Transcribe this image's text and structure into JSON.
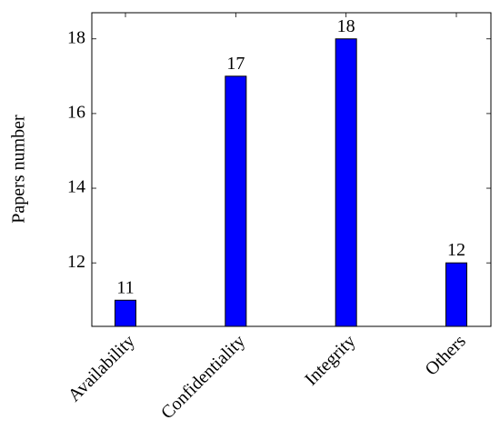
{
  "chart_data": {
    "type": "bar",
    "categories": [
      "Availability",
      "Confidentiality",
      "Integrity",
      "Others"
    ],
    "values": [
      11,
      17,
      18,
      12
    ],
    "color": "#0000ff",
    "y_label": "Papers number",
    "ylim": [
      10.3,
      18.7
    ],
    "yticks": [
      12,
      14,
      16,
      18
    ],
    "grid": false
  }
}
